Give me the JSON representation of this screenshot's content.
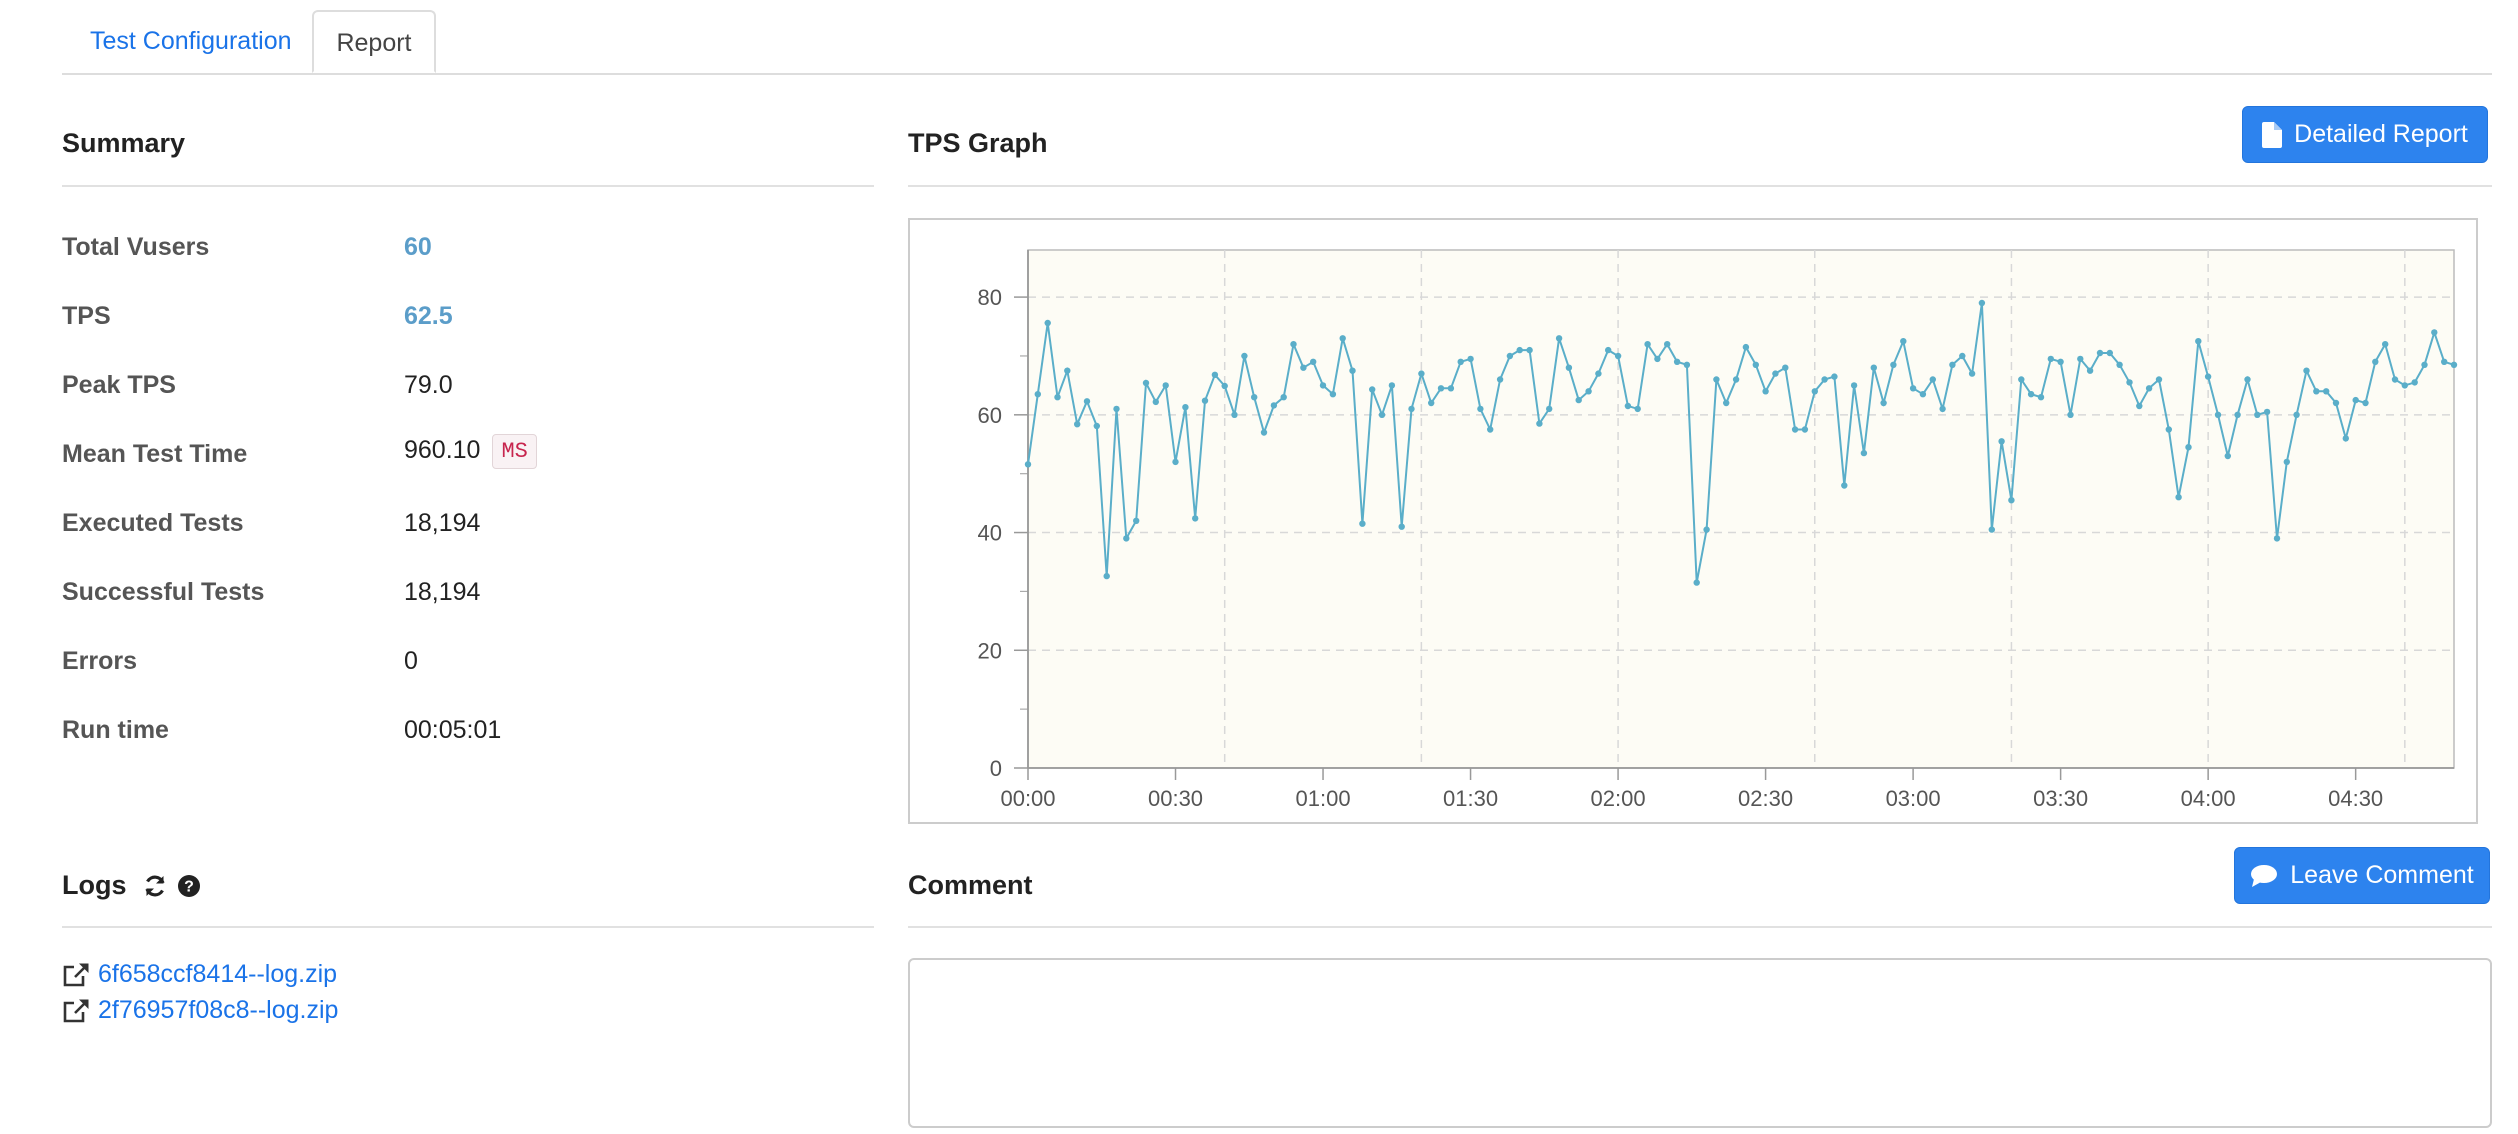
{
  "tabs": [
    {
      "label": "Test Configuration"
    },
    {
      "label": "Report"
    }
  ],
  "summary": {
    "title": "Summary",
    "rows": [
      {
        "label": "Total Vusers",
        "value": "60"
      },
      {
        "label": "TPS",
        "value": "62.5"
      },
      {
        "label": "Peak TPS",
        "value": "79.0"
      },
      {
        "label": "Mean Test Time",
        "value": "960.10",
        "unit": "MS"
      },
      {
        "label": "Executed Tests",
        "value": "18,194"
      },
      {
        "label": "Successful Tests",
        "value": "18,194"
      },
      {
        "label": "Errors",
        "value": "0"
      },
      {
        "label": "Run time",
        "value": "00:05:01"
      }
    ]
  },
  "tps_graph": {
    "title": "TPS Graph",
    "detailed_report_label": "Detailed Report"
  },
  "logs": {
    "title": "Logs",
    "files": [
      "6f658ccf8414--log.zip",
      "2f76957f08c8--log.zip"
    ]
  },
  "comment": {
    "title": "Comment",
    "leave_comment_label": "Leave Comment",
    "text": ""
  },
  "colors": {
    "accent": "#1a73e8",
    "button": "#2d83ee",
    "series": "#5aaec9",
    "plot_bg": "#fdfcf5"
  },
  "chart_data": {
    "type": "line",
    "title": "",
    "xlabel": "",
    "ylabel": "",
    "x_ticks": [
      "00:00",
      "00:30",
      "01:00",
      "01:30",
      "02:00",
      "02:30",
      "03:00",
      "03:30",
      "04:00",
      "04:30"
    ],
    "x_range_seconds": [
      0,
      290
    ],
    "y_ticks": [
      0,
      20,
      40,
      60,
      80
    ],
    "ylim": [
      0,
      88
    ],
    "grid": true,
    "series": [
      {
        "values": [
          51.6,
          63.5,
          75.6,
          63.0,
          67.5,
          58.4,
          62.3,
          58.1,
          32.6,
          61.0,
          39.0,
          42.0,
          65.4,
          62.2,
          65.0,
          52.0,
          61.3,
          42.4,
          62.4,
          66.8,
          64.9,
          60.0,
          70.0,
          63.0,
          57.0,
          61.6,
          63.0,
          72.0,
          68.0,
          69.0,
          65.0,
          63.5,
          73.0,
          67.5,
          41.5,
          64.3,
          60.0,
          65.0,
          41.0,
          61.0,
          67.0,
          62.0,
          64.5,
          64.5,
          69.0,
          69.5,
          61.0,
          57.5,
          66.0,
          70.0,
          71.0,
          71.0,
          58.5,
          61.0,
          73.0,
          68.0,
          62.5,
          64.0,
          67.0,
          71.0,
          70.0,
          61.5,
          61.0,
          72.0,
          69.5,
          72.0,
          69.0,
          68.5,
          31.5,
          40.5,
          66.0,
          62.0,
          66.0,
          71.5,
          68.5,
          64.0,
          67.0,
          68.0,
          57.5,
          57.5,
          64.0,
          66.0,
          66.5,
          48.0,
          65.0,
          53.5,
          68.0,
          62.0,
          68.5,
          72.5,
          64.5,
          63.5,
          66.0,
          61.0,
          68.5,
          70.0,
          67.0,
          79.0,
          40.5,
          55.5,
          45.5,
          66.0,
          63.5,
          63.0,
          69.5,
          69.0,
          60.0,
          69.5,
          67.5,
          70.5,
          70.5,
          68.5,
          65.5,
          61.5,
          64.5,
          66.0,
          57.5,
          46.0,
          54.5,
          72.5,
          66.5,
          60.0,
          53.0,
          60.0,
          66.0,
          60.0,
          60.5,
          39.0,
          52.0,
          60.0,
          67.5,
          64.0,
          64.0,
          62.0,
          56.0,
          62.5,
          62.0,
          69.0,
          72.0,
          66.0,
          65.0,
          65.5,
          68.5,
          74.0,
          69.0,
          68.5
        ]
      }
    ]
  }
}
